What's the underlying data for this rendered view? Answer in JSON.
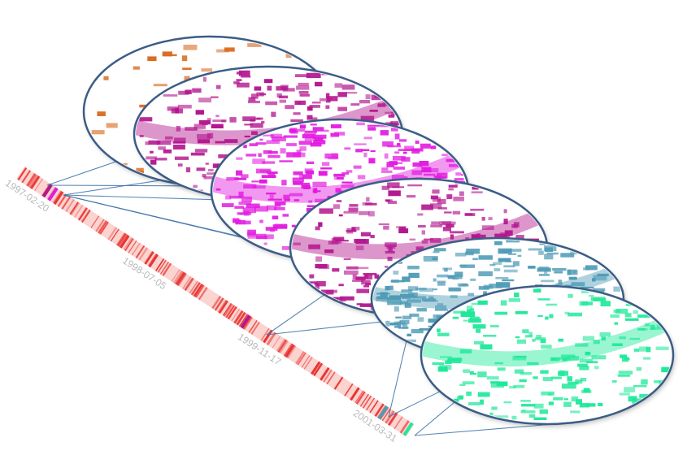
{
  "timeline": {
    "date_labels": [
      "1997-02-20",
      "1998-07-05",
      "1999-11-17",
      "2001-03-31"
    ],
    "tick_color": "#e8312f",
    "band_color": "#fbd3cf"
  },
  "sky_maps": [
    {
      "name": "orange",
      "color": "#d96a1f",
      "coverage": 0.18
    },
    {
      "name": "magenta-dark",
      "color": "#b3178f",
      "coverage": 0.55
    },
    {
      "name": "magenta-bright",
      "color": "#e21be0",
      "coverage": 0.8
    },
    {
      "name": "magenta-dark",
      "color": "#b3178f",
      "coverage": 0.5
    },
    {
      "name": "steel-blue",
      "color": "#4f9bb6",
      "coverage": 0.65
    },
    {
      "name": "mint-green",
      "color": "#1fe89a",
      "coverage": 0.45
    }
  ],
  "colors": {
    "ellipse_stroke": "#3b5d86",
    "connector": "#3d72a8"
  }
}
